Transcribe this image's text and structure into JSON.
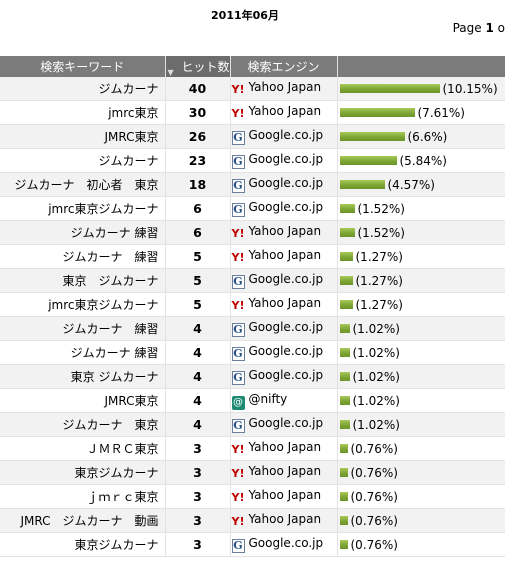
{
  "report": {
    "title": "2011年06月"
  },
  "pager": {
    "prefix": "Page",
    "current": "1",
    "suffix": "o"
  },
  "columns": {
    "keyword": "検索キーワード",
    "hits": "ヒット数",
    "engine": "検索エンジン",
    "share": ""
  },
  "icons": {
    "yahoo": "Y!",
    "google": "G",
    "nifty": "@"
  },
  "max_value": 40,
  "rows": [
    {
      "keyword": "ジムカーナ",
      "hits": "40",
      "engine": "Yahoo Japan",
      "engine_icon": "yahoo",
      "share_value": 10.15,
      "share": "(10.15%)"
    },
    {
      "keyword": "jmrc東京",
      "hits": "30",
      "engine": "Yahoo Japan",
      "engine_icon": "yahoo",
      "share_value": 7.61,
      "share": "(7.61%)"
    },
    {
      "keyword": "JMRC東京",
      "hits": "26",
      "engine": "Google.co.jp",
      "engine_icon": "google",
      "share_value": 6.6,
      "share": "(6.6%)"
    },
    {
      "keyword": "ジムカーナ",
      "hits": "23",
      "engine": "Google.co.jp",
      "engine_icon": "google",
      "share_value": 5.84,
      "share": "(5.84%)"
    },
    {
      "keyword": "ジムカーナ　初心者　東京",
      "hits": "18",
      "engine": "Google.co.jp",
      "engine_icon": "google",
      "share_value": 4.57,
      "share": "(4.57%)"
    },
    {
      "keyword": "jmrc東京ジムカーナ",
      "hits": "6",
      "engine": "Google.co.jp",
      "engine_icon": "google",
      "share_value": 1.52,
      "share": "(1.52%)"
    },
    {
      "keyword": "ジムカーナ 練習",
      "hits": "6",
      "engine": "Yahoo Japan",
      "engine_icon": "yahoo",
      "share_value": 1.52,
      "share": "(1.52%)"
    },
    {
      "keyword": "ジムカーナ　練習",
      "hits": "5",
      "engine": "Yahoo Japan",
      "engine_icon": "yahoo",
      "share_value": 1.27,
      "share": "(1.27%)"
    },
    {
      "keyword": "東京　ジムカーナ",
      "hits": "5",
      "engine": "Google.co.jp",
      "engine_icon": "google",
      "share_value": 1.27,
      "share": "(1.27%)"
    },
    {
      "keyword": "jmrc東京ジムカーナ",
      "hits": "5",
      "engine": "Yahoo Japan",
      "engine_icon": "yahoo",
      "share_value": 1.27,
      "share": "(1.27%)"
    },
    {
      "keyword": "ジムカーナ　練習",
      "hits": "4",
      "engine": "Google.co.jp",
      "engine_icon": "google",
      "share_value": 1.02,
      "share": "(1.02%)"
    },
    {
      "keyword": "ジムカーナ 練習",
      "hits": "4",
      "engine": "Google.co.jp",
      "engine_icon": "google",
      "share_value": 1.02,
      "share": "(1.02%)"
    },
    {
      "keyword": "東京 ジムカーナ",
      "hits": "4",
      "engine": "Google.co.jp",
      "engine_icon": "google",
      "share_value": 1.02,
      "share": "(1.02%)"
    },
    {
      "keyword": "JMRC東京",
      "hits": "4",
      "engine": "@nifty",
      "engine_icon": "nifty",
      "share_value": 1.02,
      "share": "(1.02%)"
    },
    {
      "keyword": "ジムカーナ　東京",
      "hits": "4",
      "engine": "Google.co.jp",
      "engine_icon": "google",
      "share_value": 1.02,
      "share": "(1.02%)"
    },
    {
      "keyword": "ＪＭＲＣ東京",
      "hits": "3",
      "engine": "Yahoo Japan",
      "engine_icon": "yahoo",
      "share_value": 0.76,
      "share": "(0.76%)"
    },
    {
      "keyword": "東京ジムカーナ",
      "hits": "3",
      "engine": "Yahoo Japan",
      "engine_icon": "yahoo",
      "share_value": 0.76,
      "share": "(0.76%)"
    },
    {
      "keyword": "ｊｍｒｃ東京",
      "hits": "3",
      "engine": "Yahoo Japan",
      "engine_icon": "yahoo",
      "share_value": 0.76,
      "share": "(0.76%)"
    },
    {
      "keyword": "JMRC　ジムカーナ　動画",
      "hits": "3",
      "engine": "Yahoo Japan",
      "engine_icon": "yahoo",
      "share_value": 0.76,
      "share": "(0.76%)"
    },
    {
      "keyword": "東京ジムカーナ",
      "hits": "3",
      "engine": "Google.co.jp",
      "engine_icon": "google",
      "share_value": 0.76,
      "share": "(0.76%)"
    }
  ]
}
